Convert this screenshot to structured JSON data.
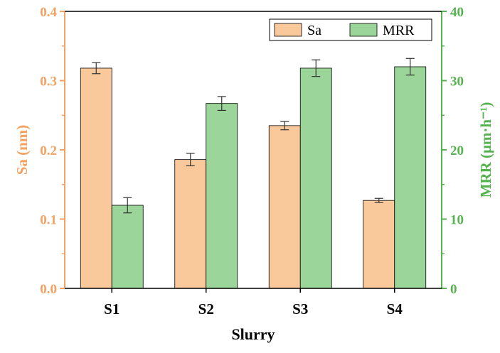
{
  "chart_data": {
    "type": "bar",
    "categories": [
      "S1",
      "S2",
      "S3",
      "S4"
    ],
    "xlabel": "Slurry",
    "ylabel_left": "Sa (nm)",
    "ylabel_right": "MRR (μm·h⁻¹)",
    "ylim_left": [
      0,
      0.4
    ],
    "ylim_right": [
      0,
      40
    ],
    "yticks_left": [
      "0.0",
      "0.1",
      "0.2",
      "0.3",
      "0.4"
    ],
    "yticks_right": [
      "0",
      "10",
      "20",
      "30",
      "40"
    ],
    "legend_position": "top-right",
    "colors": {
      "left_axis": "#F4A261",
      "right_axis": "#55B34F",
      "sa_fill": "#F9C89B",
      "mrr_fill": "#9CD59A"
    },
    "series": [
      {
        "name": "Sa",
        "axis": "left",
        "values": [
          0.318,
          0.186,
          0.235,
          0.127
        ],
        "errors": [
          0.008,
          0.009,
          0.006,
          0.003
        ]
      },
      {
        "name": "MRR",
        "axis": "right",
        "values": [
          12.0,
          26.7,
          31.8,
          32.0
        ],
        "errors": [
          1.1,
          1.0,
          1.2,
          1.2
        ]
      }
    ]
  }
}
